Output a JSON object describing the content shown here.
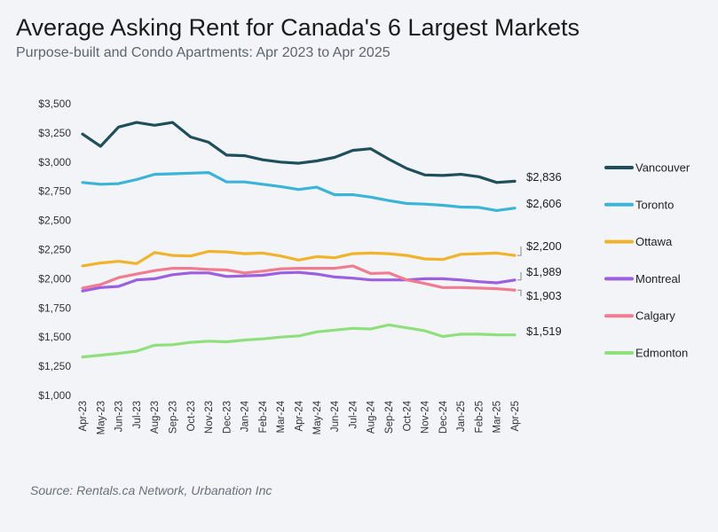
{
  "chart_data": {
    "type": "line",
    "title": "Average Asking Rent for Canada's 6 Largest Markets",
    "subtitle": "Purpose-built and Condo Apartments: Apr 2023 to Apr 2025",
    "source": "Source: Rentals.ca Network, Urbanation Inc",
    "xlabel": "",
    "ylabel": "",
    "ylim": [
      1000,
      3500
    ],
    "yticks": [
      1000,
      1250,
      1500,
      1750,
      2000,
      2250,
      2500,
      2750,
      3000,
      3250,
      3500
    ],
    "ytick_labels": [
      "$1,000",
      "$1,250",
      "$1,500",
      "$1,750",
      "$2,000",
      "$2,250",
      "$2,500",
      "$2,750",
      "$3,000",
      "$3,250",
      "$3,500"
    ],
    "grid": false,
    "legend_position": "right",
    "categories": [
      "Apr-23",
      "May-23",
      "Jun-23",
      "Jul-23",
      "Aug-23",
      "Sep-23",
      "Oct-23",
      "Nov-23",
      "Dec-23",
      "Jan-24",
      "Feb-24",
      "Mar-24",
      "Apr-24",
      "May-24",
      "Jun-24",
      "Jul-24",
      "Aug-24",
      "Sep-24",
      "Oct-24",
      "Nov-24",
      "Dec-24",
      "Jan-25",
      "Feb-25",
      "Mar-25",
      "Apr-25"
    ],
    "series": [
      {
        "name": "Vancouver",
        "color": "#1f4e5c",
        "end_label": "$2,836",
        "values": [
          3240,
          3135,
          3300,
          3340,
          3315,
          3340,
          3215,
          3170,
          3060,
          3055,
          3020,
          3000,
          2990,
          3010,
          3040,
          3100,
          3115,
          3025,
          2945,
          2890,
          2885,
          2895,
          2875,
          2825,
          2836
        ]
      },
      {
        "name": "Toronto",
        "color": "#3bb4d8",
        "end_label": "$2,606",
        "values": [
          2825,
          2810,
          2815,
          2850,
          2895,
          2900,
          2905,
          2910,
          2830,
          2830,
          2810,
          2790,
          2765,
          2785,
          2720,
          2720,
          2700,
          2670,
          2645,
          2640,
          2630,
          2615,
          2612,
          2585,
          2606
        ]
      },
      {
        "name": "Ottawa",
        "color": "#f0b32b",
        "end_label": "$2,200",
        "values": [
          2110,
          2135,
          2150,
          2130,
          2225,
          2200,
          2195,
          2235,
          2230,
          2215,
          2220,
          2195,
          2160,
          2190,
          2180,
          2215,
          2220,
          2215,
          2200,
          2170,
          2165,
          2210,
          2215,
          2220,
          2200
        ]
      },
      {
        "name": "Montreal",
        "color": "#9b5fe0",
        "end_label": "$1,989",
        "values": [
          1895,
          1925,
          1935,
          1990,
          2000,
          2035,
          2050,
          2050,
          2020,
          2025,
          2030,
          2050,
          2055,
          2040,
          2015,
          2005,
          1990,
          1990,
          1990,
          2000,
          2000,
          1990,
          1975,
          1965,
          1989
        ]
      },
      {
        "name": "Calgary",
        "color": "#f07d8f",
        "end_label": "$1,903",
        "values": [
          1920,
          1950,
          2010,
          2040,
          2070,
          2090,
          2090,
          2080,
          2075,
          2050,
          2065,
          2085,
          2090,
          2090,
          2090,
          2110,
          2045,
          2050,
          1990,
          1960,
          1925,
          1925,
          1920,
          1915,
          1903
        ]
      },
      {
        "name": "Edmonton",
        "color": "#8fe07c",
        "end_label": "$1,519",
        "values": [
          1330,
          1345,
          1360,
          1380,
          1430,
          1435,
          1455,
          1465,
          1460,
          1475,
          1485,
          1500,
          1510,
          1545,
          1560,
          1575,
          1570,
          1605,
          1580,
          1555,
          1505,
          1525,
          1525,
          1520,
          1519
        ]
      }
    ]
  }
}
